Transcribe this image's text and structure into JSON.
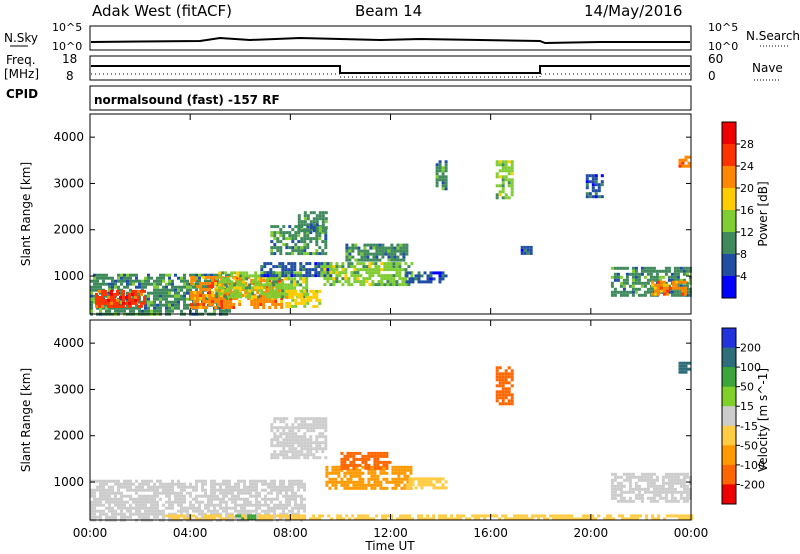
{
  "header": {
    "radar": "Adak West (fitACF)",
    "beam": "Beam 14",
    "date": "14/May/2016"
  },
  "top_panels": {
    "nsky_label": "N.Sky",
    "nsearch_label": "N.Search",
    "count_ticks": [
      "10^5",
      "10^0"
    ],
    "freq_label_1": "Freq.",
    "freq_label_2": "[MHz]",
    "freq_ticks": [
      "18",
      "8"
    ],
    "nave_label": "Nave",
    "nave_ticks": [
      "60",
      "0"
    ],
    "cpid_label": "CPID",
    "cpid_text": "normalsound (fast) -157 RF"
  },
  "x_axis": {
    "label": "Time UT",
    "ticks": [
      "00:00",
      "04:00",
      "08:00",
      "12:00",
      "16:00",
      "20:00",
      "00:00"
    ]
  },
  "colors": {
    "power": [
      "#0000ff",
      "#1f4ea3",
      "#3f8a5c",
      "#7fcc33",
      "#ffcc00",
      "#ff8800",
      "#ff3300",
      "#ee0000"
    ],
    "velocity": [
      "#2233dd",
      "#2d6e7a",
      "#3aa53a",
      "#80d02a",
      "#cccccc",
      "#ffcc44",
      "#ff9900",
      "#ff6600",
      "#ee0000"
    ]
  },
  "chart_data": [
    {
      "type": "heatmap",
      "title": "",
      "xlabel": "Time UT",
      "ylabel": "Slant Range [km]",
      "x_range_hours": [
        0,
        24
      ],
      "ylim": [
        180,
        4500
      ],
      "y_ticks": [
        "1000",
        "2000",
        "3000",
        "4000"
      ],
      "colorbar_label": "Power [dB]",
      "colorbar_ticks": [
        "28",
        "24",
        "20",
        "16",
        "12",
        "8",
        "4"
      ],
      "colorbar_range": [
        0,
        32
      ],
      "regions": [
        {
          "t0": 0.0,
          "t1": 5.6,
          "r0": 200,
          "r1": 1050,
          "value": 10
        },
        {
          "t0": 0.2,
          "t1": 2.2,
          "r0": 350,
          "r1": 700,
          "value": 26
        },
        {
          "t0": 4.0,
          "t1": 7.6,
          "r0": 300,
          "r1": 1000,
          "value": 22
        },
        {
          "t0": 5.0,
          "t1": 8.6,
          "r0": 550,
          "r1": 1100,
          "value": 14
        },
        {
          "t0": 7.8,
          "t1": 9.2,
          "r0": 350,
          "r1": 700,
          "value": 18
        },
        {
          "t0": 6.8,
          "t1": 9.6,
          "r0": 1000,
          "r1": 1300,
          "value": 6
        },
        {
          "t0": 7.2,
          "t1": 9.4,
          "r0": 1500,
          "r1": 2100,
          "value": 10
        },
        {
          "t0": 8.3,
          "t1": 9.4,
          "r0": 2000,
          "r1": 2400,
          "value": 9
        },
        {
          "t0": 9.2,
          "t1": 12.8,
          "r0": 800,
          "r1": 1300,
          "value": 12
        },
        {
          "t0": 10.2,
          "t1": 12.6,
          "r0": 1350,
          "r1": 1700,
          "value": 8
        },
        {
          "t0": 12.6,
          "t1": 14.2,
          "r0": 850,
          "r1": 1100,
          "value": 6
        },
        {
          "t0": 13.8,
          "t1": 14.2,
          "r0": 2900,
          "r1": 3500,
          "value": 10
        },
        {
          "t0": 16.2,
          "t1": 16.8,
          "r0": 2700,
          "r1": 3500,
          "value": 12
        },
        {
          "t0": 17.2,
          "t1": 17.6,
          "r0": 1500,
          "r1": 1650,
          "value": 7
        },
        {
          "t0": 19.8,
          "t1": 20.4,
          "r0": 2700,
          "r1": 3200,
          "value": 6
        },
        {
          "t0": 20.8,
          "t1": 24.0,
          "r0": 600,
          "r1": 1200,
          "value": 8
        },
        {
          "t0": 22.4,
          "t1": 23.8,
          "r0": 600,
          "r1": 900,
          "value": 22
        },
        {
          "t0": 23.5,
          "t1": 23.9,
          "r0": 3400,
          "r1": 3600,
          "value": 20
        }
      ]
    },
    {
      "type": "heatmap",
      "title": "",
      "xlabel": "Time UT",
      "ylabel": "Slant Range [km]",
      "x_range_hours": [
        0,
        24
      ],
      "ylim": [
        180,
        4500
      ],
      "y_ticks": [
        "1000",
        "2000",
        "3000",
        "4000"
      ],
      "colorbar_label": "Velocity [m s^-1]",
      "colorbar_ticks": [
        "200",
        "100",
        "50",
        "15",
        "-15",
        "-50",
        "-100",
        "-200"
      ],
      "regions": [
        {
          "t0": 0.0,
          "t1": 8.6,
          "r0": 200,
          "r1": 1050,
          "value": 0
        },
        {
          "t0": 7.2,
          "t1": 9.4,
          "r0": 1500,
          "r1": 2400,
          "value": 0
        },
        {
          "t0": 9.4,
          "t1": 12.8,
          "r0": 850,
          "r1": 1350,
          "value": -80
        },
        {
          "t0": 10.0,
          "t1": 12.0,
          "r0": 1300,
          "r1": 1650,
          "value": -150
        },
        {
          "t0": 12.6,
          "t1": 14.2,
          "r0": 850,
          "r1": 1100,
          "value": -30
        },
        {
          "t0": 20.8,
          "t1": 24.0,
          "r0": 600,
          "r1": 1200,
          "value": 0
        },
        {
          "t0": 3.0,
          "t1": 24.0,
          "r0": 180,
          "r1": 300,
          "value": -30
        },
        {
          "t0": 5.8,
          "t1": 6.6,
          "r0": 180,
          "r1": 300,
          "value": 60
        },
        {
          "t0": 16.2,
          "t1": 16.8,
          "r0": 2700,
          "r1": 3500,
          "value": -150
        },
        {
          "t0": 23.5,
          "t1": 23.9,
          "r0": 3400,
          "r1": 3600,
          "value": 150
        }
      ]
    }
  ]
}
